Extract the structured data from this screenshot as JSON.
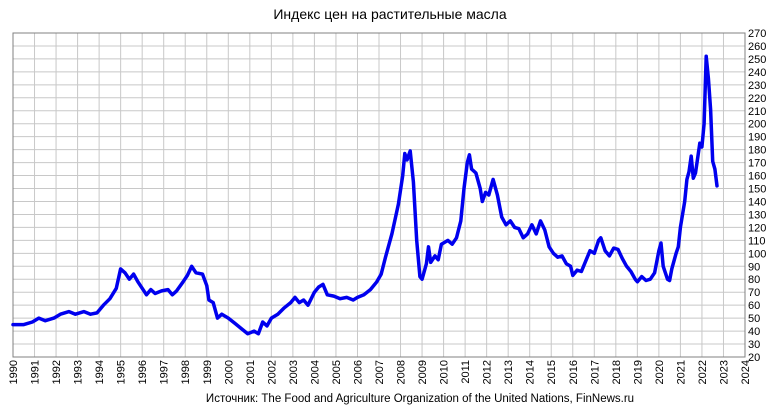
{
  "chart_data": {
    "type": "line",
    "title": "Индекс цен на растительные масла",
    "source_note": "Источник: The Food and Agriculture Organization of the United Nations, FinNews.ru",
    "ylim": [
      20,
      270
    ],
    "y_ticks": [
      "20",
      "30",
      "40",
      "50",
      "60",
      "70",
      "80",
      "90",
      "100",
      "110",
      "120",
      "130",
      "140",
      "150",
      "160",
      "170",
      "180",
      "190",
      "200",
      "210",
      "220",
      "230",
      "240",
      "250",
      "260",
      "270"
    ],
    "xlim": [
      1990,
      2024
    ],
    "x_ticks": [
      "1990",
      "1991",
      "1992",
      "1993",
      "1994",
      "1995",
      "1996",
      "1997",
      "1998",
      "1999",
      "2000",
      "2001",
      "2002",
      "2003",
      "2004",
      "2005",
      "2006",
      "2007",
      "2008",
      "2009",
      "2010",
      "2011",
      "2012",
      "2013",
      "2014",
      "2015",
      "2016",
      "2017",
      "2018",
      "2019",
      "2020",
      "2021",
      "2022",
      "2023",
      "2024"
    ],
    "grid": true,
    "legend": "none",
    "colors": {
      "series": "#0000ee",
      "grid": "#c8c8c8",
      "axis": "#808080"
    },
    "series": [
      {
        "points": [
          [
            1990.0,
            45
          ],
          [
            1990.5,
            45
          ],
          [
            1990.9,
            47
          ],
          [
            1991.2,
            50
          ],
          [
            1991.5,
            48
          ],
          [
            1991.9,
            50
          ],
          [
            1992.2,
            53
          ],
          [
            1992.6,
            55
          ],
          [
            1992.9,
            53
          ],
          [
            1993.3,
            55
          ],
          [
            1993.6,
            53
          ],
          [
            1993.9,
            54
          ],
          [
            1994.2,
            60
          ],
          [
            1994.5,
            65
          ],
          [
            1994.8,
            73
          ],
          [
            1995.0,
            88
          ],
          [
            1995.2,
            85
          ],
          [
            1995.4,
            80
          ],
          [
            1995.6,
            84
          ],
          [
            1995.8,
            78
          ],
          [
            1996.0,
            73
          ],
          [
            1996.2,
            68
          ],
          [
            1996.4,
            72
          ],
          [
            1996.6,
            69
          ],
          [
            1996.9,
            71
          ],
          [
            1997.2,
            72
          ],
          [
            1997.4,
            68
          ],
          [
            1997.6,
            71
          ],
          [
            1997.9,
            78
          ],
          [
            1998.1,
            83
          ],
          [
            1998.3,
            90
          ],
          [
            1998.5,
            85
          ],
          [
            1998.8,
            84
          ],
          [
            1999.0,
            75
          ],
          [
            1999.1,
            64
          ],
          [
            1999.3,
            62
          ],
          [
            1999.5,
            50
          ],
          [
            1999.7,
            53
          ],
          [
            2000.0,
            50
          ],
          [
            2000.3,
            46
          ],
          [
            2000.6,
            42
          ],
          [
            2000.9,
            38
          ],
          [
            2001.2,
            40
          ],
          [
            2001.4,
            38
          ],
          [
            2001.6,
            47
          ],
          [
            2001.8,
            44
          ],
          [
            2002.0,
            50
          ],
          [
            2002.3,
            53
          ],
          [
            2002.6,
            58
          ],
          [
            2002.9,
            62
          ],
          [
            2003.1,
            66
          ],
          [
            2003.3,
            62
          ],
          [
            2003.5,
            64
          ],
          [
            2003.7,
            60
          ],
          [
            2004.0,
            70
          ],
          [
            2004.2,
            74
          ],
          [
            2004.4,
            76
          ],
          [
            2004.6,
            68
          ],
          [
            2004.9,
            67
          ],
          [
            2005.2,
            65
          ],
          [
            2005.5,
            66
          ],
          [
            2005.8,
            64
          ],
          [
            2006.0,
            66
          ],
          [
            2006.3,
            68
          ],
          [
            2006.6,
            72
          ],
          [
            2006.9,
            78
          ],
          [
            2007.1,
            84
          ],
          [
            2007.3,
            97
          ],
          [
            2007.6,
            115
          ],
          [
            2007.9,
            138
          ],
          [
            2008.1,
            160
          ],
          [
            2008.2,
            177
          ],
          [
            2008.3,
            172
          ],
          [
            2008.45,
            179
          ],
          [
            2008.6,
            155
          ],
          [
            2008.75,
            110
          ],
          [
            2008.9,
            82
          ],
          [
            2009.0,
            80
          ],
          [
            2009.2,
            92
          ],
          [
            2009.3,
            105
          ],
          [
            2009.4,
            93
          ],
          [
            2009.6,
            98
          ],
          [
            2009.75,
            95
          ],
          [
            2009.9,
            107
          ],
          [
            2010.2,
            110
          ],
          [
            2010.4,
            107
          ],
          [
            2010.6,
            112
          ],
          [
            2010.8,
            125
          ],
          [
            2010.95,
            150
          ],
          [
            2011.1,
            170
          ],
          [
            2011.2,
            176
          ],
          [
            2011.3,
            165
          ],
          [
            2011.5,
            162
          ],
          [
            2011.7,
            150
          ],
          [
            2011.8,
            140
          ],
          [
            2011.95,
            147
          ],
          [
            2012.1,
            145
          ],
          [
            2012.3,
            157
          ],
          [
            2012.5,
            145
          ],
          [
            2012.7,
            128
          ],
          [
            2012.9,
            122
          ],
          [
            2013.1,
            125
          ],
          [
            2013.3,
            120
          ],
          [
            2013.5,
            119
          ],
          [
            2013.7,
            112
          ],
          [
            2013.9,
            115
          ],
          [
            2014.1,
            122
          ],
          [
            2014.3,
            115
          ],
          [
            2014.5,
            125
          ],
          [
            2014.7,
            118
          ],
          [
            2014.9,
            105
          ],
          [
            2015.1,
            100
          ],
          [
            2015.3,
            97
          ],
          [
            2015.5,
            98
          ],
          [
            2015.7,
            92
          ],
          [
            2015.9,
            90
          ],
          [
            2016.0,
            83
          ],
          [
            2016.2,
            87
          ],
          [
            2016.4,
            86
          ],
          [
            2016.6,
            94
          ],
          [
            2016.8,
            102
          ],
          [
            2017.0,
            100
          ],
          [
            2017.2,
            110
          ],
          [
            2017.3,
            112
          ],
          [
            2017.5,
            102
          ],
          [
            2017.7,
            98
          ],
          [
            2017.9,
            104
          ],
          [
            2018.1,
            103
          ],
          [
            2018.3,
            96
          ],
          [
            2018.5,
            90
          ],
          [
            2018.7,
            86
          ],
          [
            2018.9,
            80
          ],
          [
            2019.0,
            78
          ],
          [
            2019.2,
            82
          ],
          [
            2019.4,
            79
          ],
          [
            2019.6,
            80
          ],
          [
            2019.8,
            85
          ],
          [
            2020.0,
            102
          ],
          [
            2020.1,
            108
          ],
          [
            2020.2,
            90
          ],
          [
            2020.4,
            80
          ],
          [
            2020.5,
            79
          ],
          [
            2020.6,
            88
          ],
          [
            2020.8,
            100
          ],
          [
            2020.9,
            105
          ],
          [
            2021.0,
            120
          ],
          [
            2021.2,
            140
          ],
          [
            2021.3,
            157
          ],
          [
            2021.4,
            163
          ],
          [
            2021.5,
            175
          ],
          [
            2021.6,
            158
          ],
          [
            2021.7,
            162
          ],
          [
            2021.9,
            185
          ],
          [
            2022.0,
            182
          ],
          [
            2022.1,
            200
          ],
          [
            2022.2,
            252
          ],
          [
            2022.3,
            235
          ],
          [
            2022.4,
            211
          ],
          [
            2022.5,
            171
          ],
          [
            2022.6,
            165
          ],
          [
            2022.7,
            152
          ]
        ]
      }
    ]
  }
}
